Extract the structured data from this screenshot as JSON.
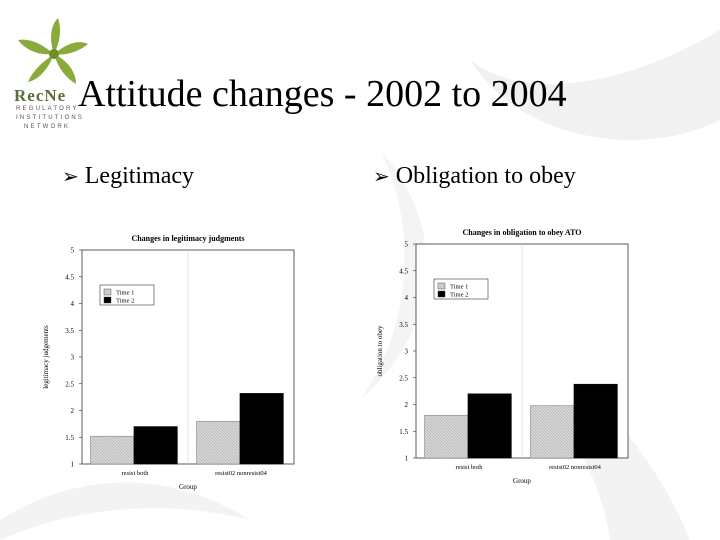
{
  "logo": {
    "word": "RecNe",
    "sub1": "REGULATORY",
    "sub2": "INSTITUTIONS",
    "sub3": "NETWORK"
  },
  "title": "Attitude changes - 2002 to 2004",
  "bullets": [
    {
      "label": "Legitimacy"
    },
    {
      "label": "Obligation to obey"
    }
  ],
  "colors": {
    "time1_fill": "#d8d8d8",
    "time2_fill": "#000000",
    "logo_green": "#8aab3c"
  },
  "chart_data": [
    {
      "type": "bar",
      "title": "Changes in legitimacy judgments",
      "xlabel": "Group",
      "ylabel": "legitimacy judgements",
      "categories": [
        "resist both",
        "resist02 nonresist04"
      ],
      "series": [
        {
          "name": "Time 1",
          "values": [
            1.52,
            1.8
          ]
        },
        {
          "name": "Time 2",
          "values": [
            1.7,
            2.32
          ]
        }
      ],
      "ylim": [
        1,
        5
      ],
      "yticks": [
        "1",
        "1.5",
        "2",
        "2.5",
        "3",
        "3.5",
        "4",
        "4.5",
        "5"
      ],
      "legend": "top-left",
      "grid": false
    },
    {
      "type": "bar",
      "title": "Changes in obligation to obey ATO",
      "xlabel": "Group",
      "ylabel": "obligation to obey",
      "categories": [
        "resist both",
        "resist02 nonresist04"
      ],
      "series": [
        {
          "name": "Time 1",
          "values": [
            1.8,
            1.98
          ]
        },
        {
          "name": "Time 2",
          "values": [
            2.2,
            2.38
          ]
        }
      ],
      "ylim": [
        1,
        5
      ],
      "yticks": [
        "1",
        "1.5",
        "2",
        "2.5",
        "3",
        "3.5",
        "4",
        "4.5",
        "5"
      ],
      "legend": "top-left",
      "grid": false
    }
  ]
}
